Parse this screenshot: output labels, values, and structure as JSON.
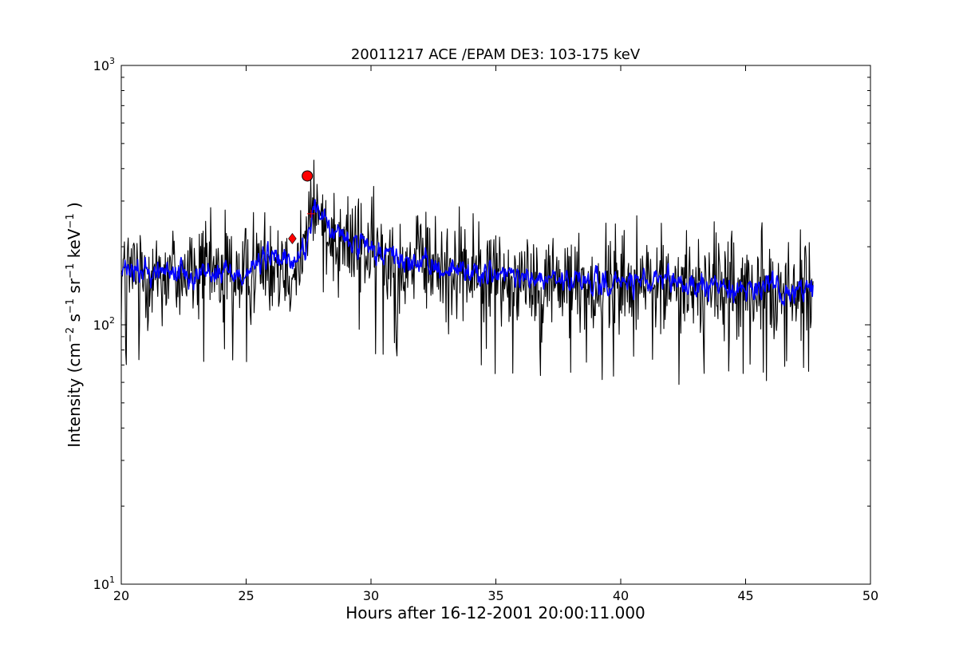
{
  "chart_data": {
    "type": "line",
    "title": "20011217 ACE /EPAM DE3: 103-175 keV",
    "xlabel": "Hours after 16-12-2001 20:00:11.000",
    "ylabel_parts": {
      "prefix": "Intensity (cm",
      "e1": "−2",
      "s": " s",
      "e2": "−1",
      "sr": " sr",
      "e3": "−1",
      "kev": " keV",
      "e4": "−1",
      "suffix": " )"
    },
    "xlim": [
      20,
      50
    ],
    "ylim": [
      10,
      1000
    ],
    "yscale": "log",
    "grid": false,
    "x_ticks": [
      "20",
      "25",
      "30",
      "35",
      "40",
      "45",
      "50"
    ],
    "y_ticks": [
      {
        "base": "10",
        "exp": "1"
      },
      {
        "base": "10",
        "exp": "2"
      },
      {
        "base": "10",
        "exp": "3"
      }
    ],
    "series": [
      {
        "color": "#000000",
        "style": "raw",
        "x_start": 20.0,
        "x_end": 47.7,
        "n": 1100,
        "trend_x": [
          20,
          25,
          26,
          26.8,
          27.4,
          27.7,
          28.0,
          28.5,
          30.0,
          32.0,
          35.0,
          38.0,
          41.0,
          44.0,
          47.7
        ],
        "trend_y": [
          160,
          160,
          185,
          170,
          200,
          290,
          260,
          225,
          190,
          170,
          155,
          145,
          145,
          140,
          135
        ],
        "spread": 0.23
      },
      {
        "color": "#0000ff",
        "style": "smoothed",
        "x_start": 20.0,
        "x_end": 47.7,
        "n": 1100,
        "trend_x": [
          20,
          25,
          26,
          26.8,
          27.4,
          27.7,
          28.0,
          28.5,
          30.0,
          32.0,
          35.0,
          38.0,
          41.0,
          44.0,
          47.7
        ],
        "trend_y": [
          160,
          160,
          185,
          170,
          200,
          290,
          260,
          225,
          190,
          170,
          155,
          145,
          145,
          140,
          135
        ],
        "spread": 0.1
      }
    ],
    "markers": [
      {
        "shape": "circle",
        "x": 27.45,
        "y": 375,
        "color": "#ff0000"
      },
      {
        "shape": "diamond",
        "x": 26.85,
        "y": 215,
        "color": "#ff0000"
      },
      {
        "shape": "plus",
        "x": 27.6,
        "y": 268,
        "color": "#ff0000"
      }
    ]
  }
}
